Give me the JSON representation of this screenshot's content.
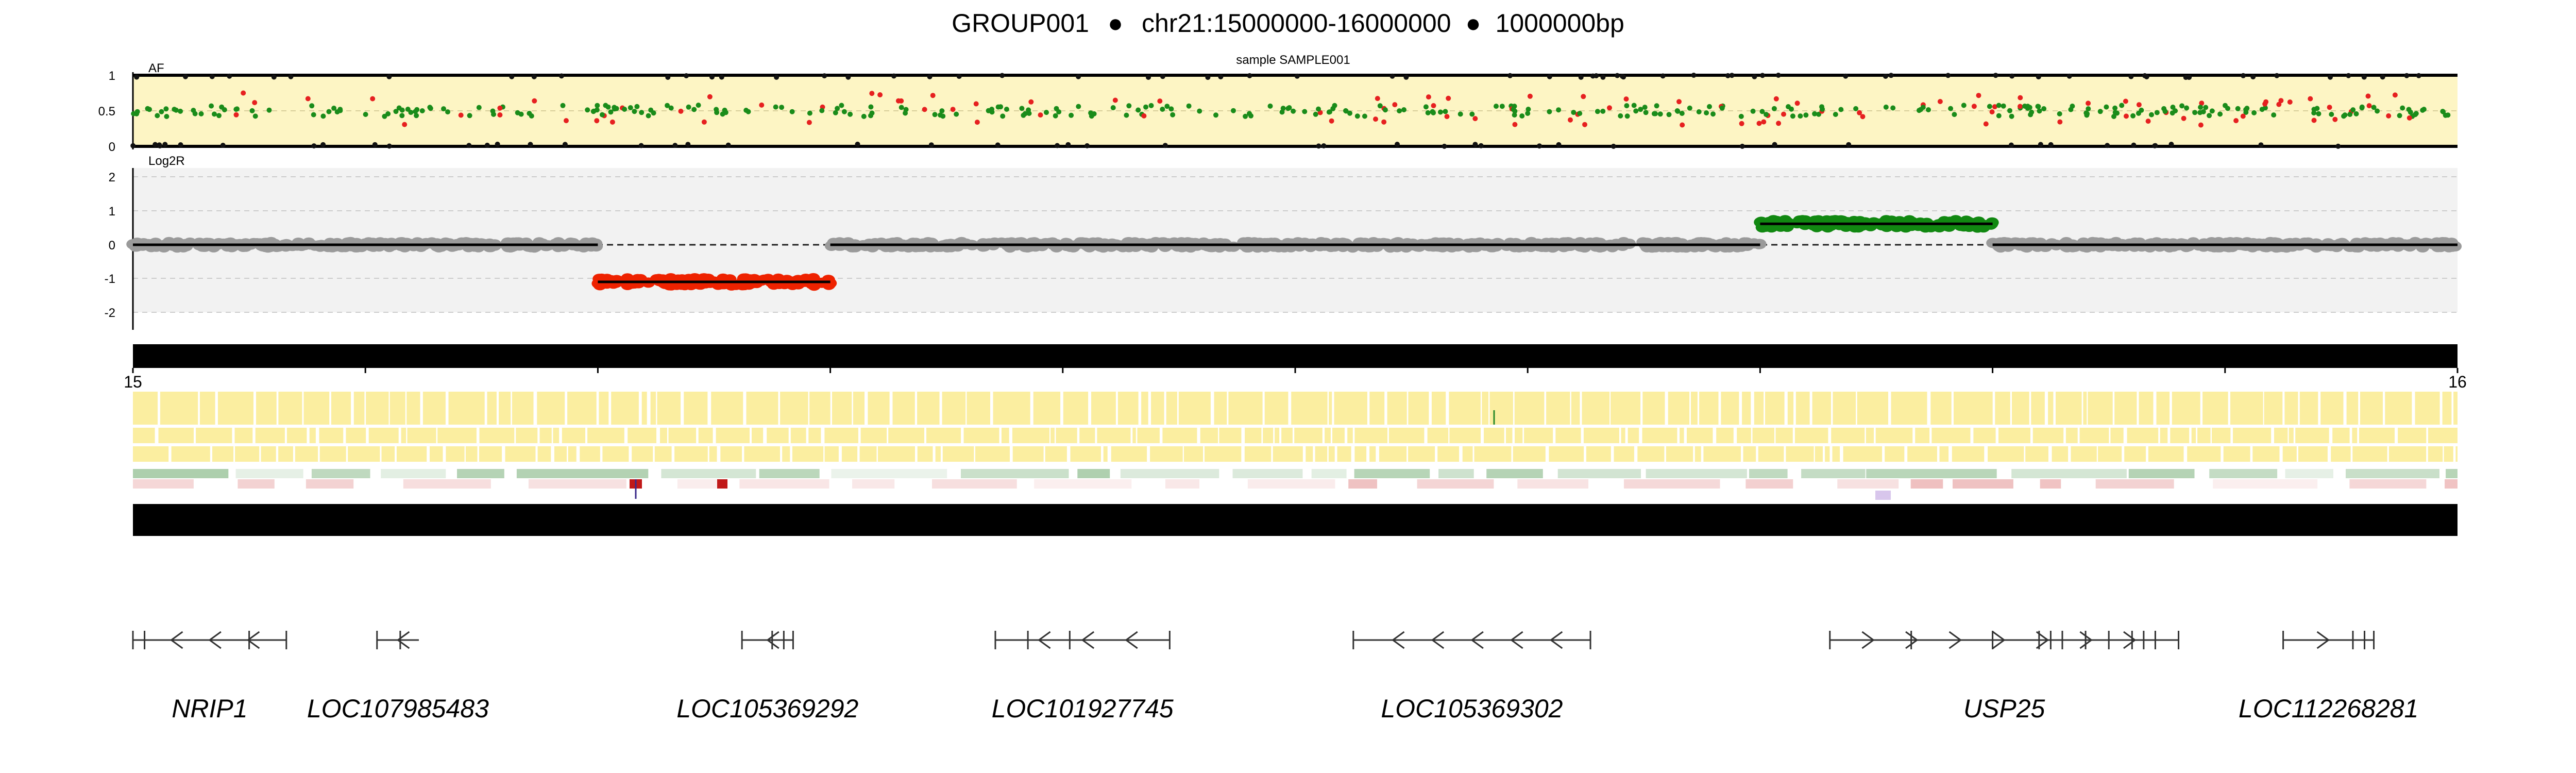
{
  "header": {
    "group": "GROUP001",
    "separator": "●",
    "region": "chr21:15000000-16000000",
    "size": "1000000bp"
  },
  "chart_data": {
    "type": "scatter",
    "region": {
      "chrom": "chr21",
      "start": 15000000,
      "end": 16000000
    },
    "sample_title": "sample SAMPLE001",
    "af_track": {
      "label": "AF",
      "ylim": [
        0,
        1
      ],
      "yticks": [
        "1",
        "0.5",
        "0"
      ],
      "grid": true,
      "background": "#fdf5c4",
      "colors": {
        "het": "#1a8c1a",
        "other": "#e62020",
        "hom": "#111111"
      },
      "note": "dense variant allele-fraction scatter across the whole region"
    },
    "log2r_track": {
      "label": "Log2R",
      "ylim": [
        -2.5,
        2.5
      ],
      "yticks": [
        "2",
        "1",
        "0",
        "-1",
        "-2"
      ],
      "grid": true,
      "background": "#f2f2f2",
      "segments": [
        {
          "start_mb": 15.0,
          "end_mb": 15.2,
          "log2r": 0.0,
          "call": "neutral"
        },
        {
          "start_mb": 15.2,
          "end_mb": 15.3,
          "log2r": -1.1,
          "call": "loss"
        },
        {
          "start_mb": 15.3,
          "end_mb": 15.7,
          "log2r": 0.0,
          "call": "neutral"
        },
        {
          "start_mb": 15.7,
          "end_mb": 15.8,
          "log2r": 0.62,
          "call": "gain"
        },
        {
          "start_mb": 15.8,
          "end_mb": 16.0,
          "log2r": 0.0,
          "call": "neutral"
        }
      ],
      "colors": {
        "neutral": "#9a9a9a",
        "loss": "#ee2200",
        "gain": "#118811"
      }
    },
    "x_axis": {
      "start_label": "15",
      "end_label": "16"
    },
    "genes": [
      {
        "name": "NRIP1",
        "start": 15.0,
        "end": 15.066,
        "strand": "-",
        "exons": [
          15.0,
          15.005,
          15.05,
          15.066
        ]
      },
      {
        "name": "LOC107985483",
        "start": 15.105,
        "end": 15.123,
        "strand": "-",
        "exons": [
          15.105,
          15.115
        ]
      },
      {
        "name": "LOC105369292",
        "start": 15.262,
        "end": 15.284,
        "strand": "-",
        "exons": [
          15.262,
          15.275,
          15.28,
          15.284
        ]
      },
      {
        "name": "LOC101927745",
        "start": 15.371,
        "end": 15.446,
        "strand": "-",
        "exons": [
          15.371,
          15.385,
          15.403,
          15.446
        ]
      },
      {
        "name": "LOC105369302",
        "start": 15.525,
        "end": 15.627,
        "strand": "-",
        "exons": [
          15.525,
          15.627
        ]
      },
      {
        "name": "USP25",
        "start": 15.73,
        "end": 15.88,
        "strand": "+",
        "exons": [
          15.73,
          15.765,
          15.8,
          15.82,
          15.825,
          15.83,
          15.84,
          15.85,
          15.86,
          15.865,
          15.87,
          15.88
        ]
      },
      {
        "name": "LOC112268281",
        "start": 15.925,
        "end": 15.964,
        "strand": "+",
        "exons": [
          15.925,
          15.955,
          15.96,
          15.964
        ]
      }
    ]
  }
}
